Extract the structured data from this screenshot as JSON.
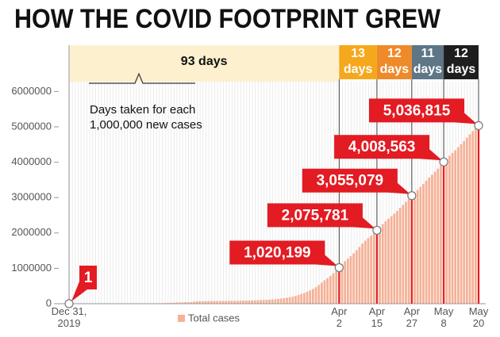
{
  "chart_data": {
    "type": "bar",
    "title": "HOW THE COVID FOOTPRINT GREW",
    "annotation": [
      "Days taken for each",
      "1,000,000 new cases"
    ],
    "periods": {
      "values": [
        93,
        13,
        12,
        11,
        12
      ],
      "value_labels": [
        "93 days",
        "13 days",
        "12 days",
        "11 days",
        "12 days"
      ],
      "colors": [
        "#fdf0cf",
        "#f6a81c",
        "#ef8a2a",
        "#5e7686",
        "#1e1e1e"
      ]
    },
    "milestones": {
      "categories": [
        "Dec 31, 2019",
        "Apr 2",
        "Apr 15",
        "Apr 27",
        "May 8",
        "May 20"
      ],
      "values": [
        1,
        1020199,
        2075781,
        3055079,
        4008563,
        5036815
      ],
      "value_labels": [
        "1",
        "1,020,199",
        "2,075,781",
        "3,055,079",
        "4,008,563",
        "5,036,815"
      ],
      "color": "#e31b23"
    },
    "series": [
      {
        "name": "Total cases",
        "color": "#f5b197",
        "values": [
          1,
          27,
          27,
          44,
          44,
          59,
          59,
          59,
          59,
          59,
          59,
          59,
          59,
          59,
          59,
          59,
          59,
          62,
          121,
          198,
          291,
          440,
          571,
          830,
          1287,
          1975,
          2744,
          4515,
          5974,
          7711,
          9692,
          11791,
          14380,
          17205,
          20438,
          24324,
          28018,
          31161,
          34546,
          37198,
          40171,
          42638,
          44653,
          59895,
          66358,
          68413,
          70513,
          72528,
          74280,
          75204,
          75748,
          76769,
          77794,
          78811,
          79331,
          80239,
          81109,
          82294,
          83652,
          85403,
          87137,
          88948,
          90869,
          93091,
          95324,
          98192,
          102188,
          106101,
          109988,
          114232,
          118951,
          126214,
          134576,
          145483,
          156653,
          169593,
          182490,
          198238,
          218822,
          244933,
          275597,
          305036,
          336953,
          378235,
          418045,
          467653,
          529591,
          593291,
          660706,
          720117,
          782365,
          857487,
          932605,
          1020199,
          1116359,
          1201964,
          1272115,
          1345101,
          1426096,
          1511104,
          1603719,
          1699631,
          1780315,
          1852365,
          1923937,
          1998111,
          2075781,
          2160207,
          2248390,
          2330000,
          2401379,
          2472259,
          2549123,
          2624000,
          2708885,
          2797539,
          2881140,
          2954222,
          3055079,
          3136000,
          3217000,
          3303000,
          3389000,
          3479000,
          3567000,
          3648000,
          3731000,
          3820000,
          3914000,
          4008563,
          4096000,
          4181000,
          4260000,
          4338000,
          4425000,
          4510000,
          4600000,
          4693000,
          4789000,
          4880000,
          4959000,
          5036815
        ]
      }
    ],
    "ylim": [
      0,
      6300000
    ],
    "yticks": [
      0,
      1000000,
      2000000,
      3000000,
      4000000,
      5000000,
      6000000
    ]
  }
}
